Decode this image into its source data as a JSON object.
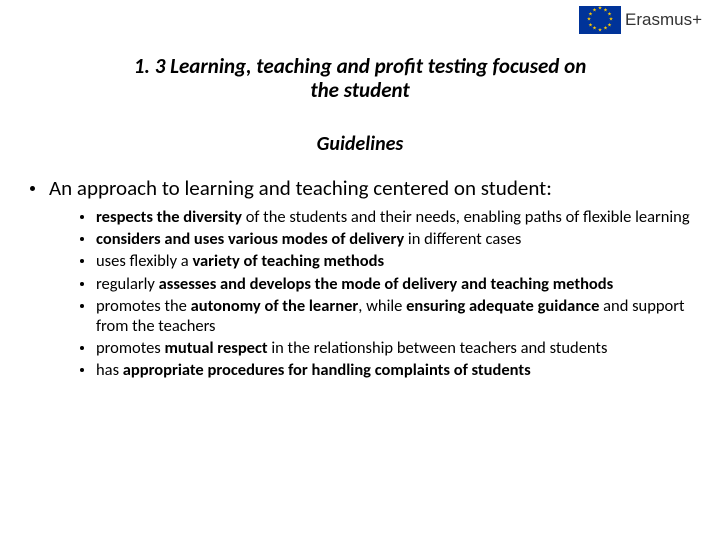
{
  "logo": {
    "brand_text": "Erasmus+",
    "flag_bg": "#003399",
    "star_color": "#ffcc00",
    "text_color": "#333333"
  },
  "title_line1": "1. 3 Learning, teaching and profit testing focused on",
  "title_line2": "the student",
  "subtitle": "Guidelines",
  "lead": "An approach to learning and teaching centered on student:",
  "items": [
    {
      "segments": [
        {
          "t": "respects the diversity",
          "b": true
        },
        {
          "t": " of the students and their needs, enabling paths of flexible learning",
          "b": false
        }
      ]
    },
    {
      "segments": [
        {
          "t": "considers and uses various modes of delivery",
          "b": true
        },
        {
          "t": " in different cases",
          "b": false
        }
      ]
    },
    {
      "segments": [
        {
          "t": "uses flexibly a ",
          "b": false
        },
        {
          "t": "variety of teaching methods",
          "b": true
        }
      ]
    },
    {
      "segments": [
        {
          "t": "regularly ",
          "b": false
        },
        {
          "t": "assesses and develops the mode of delivery and teaching methods",
          "b": true
        }
      ]
    },
    {
      "segments": [
        {
          "t": "promotes the ",
          "b": false
        },
        {
          "t": "autonomy of the learner",
          "b": true
        },
        {
          "t": ", while ",
          "b": false
        },
        {
          "t": "ensuring adequate guidance ",
          "b": true
        },
        {
          "t": "and support from the teachers",
          "b": false
        }
      ]
    },
    {
      "segments": [
        {
          "t": "promotes ",
          "b": false
        },
        {
          "t": "mutual respect ",
          "b": true
        },
        {
          "t": "in the relationship between teachers and students",
          "b": false
        }
      ]
    },
    {
      "segments": [
        {
          "t": "has ",
          "b": false
        },
        {
          "t": "appropriate procedures for handling complaints of students",
          "b": true
        }
      ]
    }
  ],
  "style": {
    "bg": "#ffffff",
    "text_color": "#000000",
    "title_fontsize": 21,
    "subtitle_fontsize": 20,
    "lead_fontsize": 21,
    "item_fontsize": 16.5
  }
}
